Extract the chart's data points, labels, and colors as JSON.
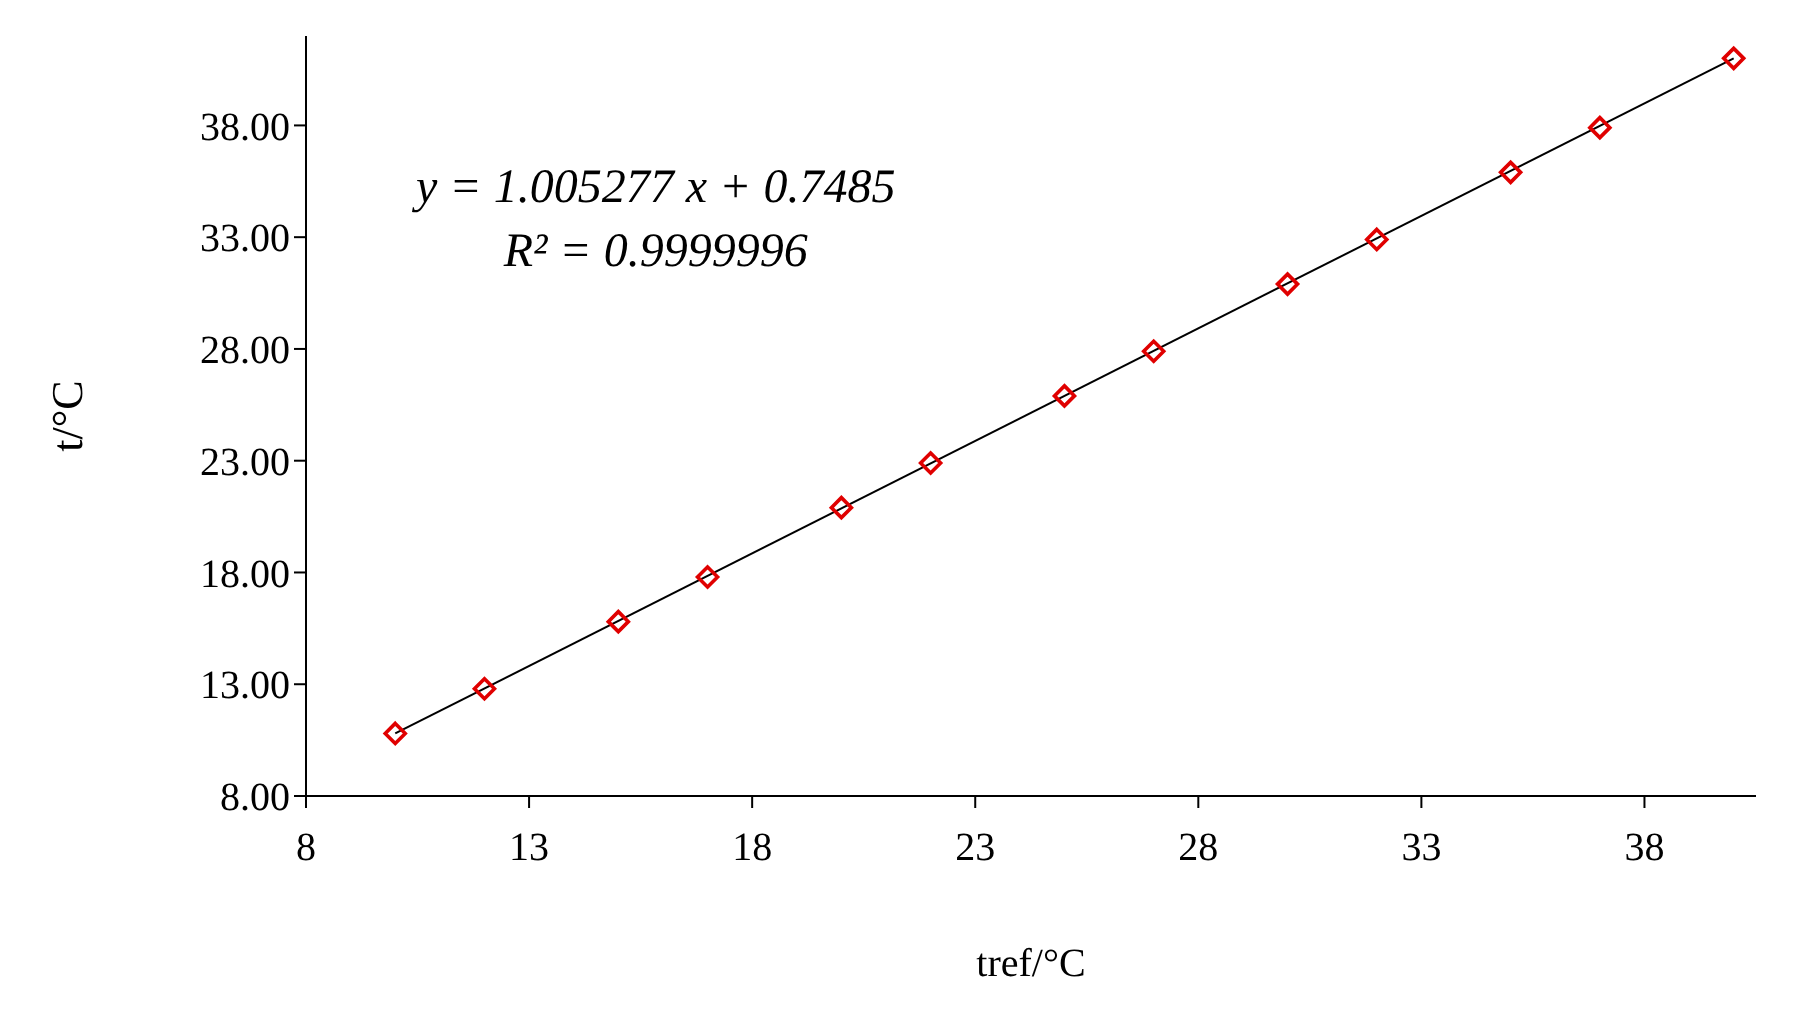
{
  "chart_data": {
    "type": "scatter",
    "xlabel": "tref/°C",
    "ylabel": "t/°C",
    "annotations": [
      "y = 1.005277 x + 0.7485",
      "R² = 0.9999996"
    ],
    "marker": "diamond",
    "xlim": [
      8,
      40.5
    ],
    "xticks": [
      8,
      13,
      18,
      23,
      28,
      33,
      38
    ],
    "ylim": [
      8,
      42
    ],
    "yticks": [
      {
        "value": 8,
        "label": "8.00"
      },
      {
        "value": 13,
        "label": "13.00"
      },
      {
        "value": 18,
        "label": "18.00"
      },
      {
        "value": 23,
        "label": "23.00"
      },
      {
        "value": 28,
        "label": "28.00"
      },
      {
        "value": 33,
        "label": "33.00"
      },
      {
        "value": 38,
        "label": "38.00"
      }
    ],
    "series": [
      {
        "type": "scatter",
        "color": "#e00000",
        "x": [
          10,
          12,
          15,
          17,
          20,
          22,
          25,
          27,
          30,
          32,
          35,
          37,
          40
        ],
        "values": [
          10.8,
          12.8,
          15.8,
          17.8,
          20.9,
          22.9,
          25.9,
          27.9,
          30.9,
          32.9,
          35.9,
          37.9,
          41.0
        ]
      },
      {
        "type": "line",
        "color": "#000000",
        "line_style": "solid",
        "marker": "none",
        "x": [
          10,
          40
        ],
        "values": [
          10.8,
          41.0
        ]
      }
    ]
  }
}
